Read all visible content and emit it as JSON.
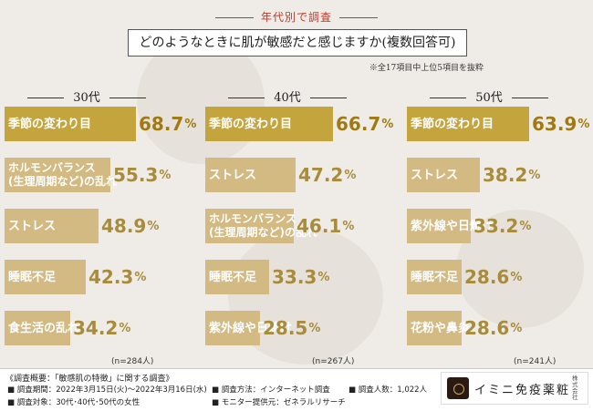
{
  "header": {
    "label": "年代別で調査",
    "question": "どのようなときに肌が敏感だと感じますか(複数回答可)",
    "note": "※全17項目中上位5項目を抜粋"
  },
  "chart_data": [
    {
      "type": "bar",
      "title": "30代",
      "sample": "(n=284人)",
      "unit": "%",
      "categories": [
        "季節の変わり目",
        "ホルモンバランス\n(生理周期など)の乱れ",
        "ストレス",
        "睡眠不足",
        "食生活の乱れ"
      ],
      "values": [
        68.7,
        55.3,
        48.9,
        42.3,
        34.2
      ],
      "value_labels": [
        "68.7",
        "55.3",
        "48.9",
        "42.3",
        "34.2"
      ]
    },
    {
      "type": "bar",
      "title": "40代",
      "sample": "(n=267人)",
      "unit": "%",
      "categories": [
        "季節の変わり目",
        "ストレス",
        "ホルモンバランス\n(生理周期など)の乱れ",
        "睡眠不足",
        "紫外線や日焼け"
      ],
      "values": [
        66.7,
        47.2,
        46.1,
        33.3,
        28.5
      ],
      "value_labels": [
        "66.7",
        "47.2",
        "46.1",
        "33.3",
        "28.5"
      ]
    },
    {
      "type": "bar",
      "title": "50代",
      "sample": "(n=241人)",
      "unit": "%",
      "categories": [
        "季節の変わり目",
        "ストレス",
        "紫外線や日焼け",
        "睡眠不足",
        "花粉や鼻炎"
      ],
      "values": [
        63.9,
        38.2,
        33.2,
        28.6,
        28.6
      ],
      "value_labels": [
        "63.9",
        "38.2",
        "33.2",
        "28.6",
        "28.6"
      ]
    }
  ],
  "colors": {
    "top_bar": "#c4a43c",
    "other_bar": "#d3b982"
  },
  "footer": {
    "title": "《調査概要：「敏感肌の特徴」に関する調査》",
    "period": "■ 調査期間：2022年3月15日(火)～2022年3月16日(水)",
    "method": "■ 調査方法：インターネット調査",
    "count": "■ 調査人数：1,022人",
    "target": "■ 調査対象：30代･40代･50代の女性",
    "provider": "■ モニター提供元：ゼネラルリサーチ"
  },
  "logo": {
    "name": "イミニ免疫薬粧",
    "sub": "株式会社"
  }
}
